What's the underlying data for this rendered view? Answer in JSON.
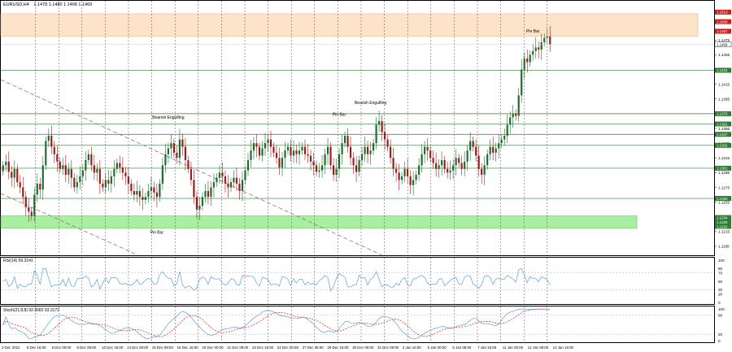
{
  "header": {
    "symbol": "EURUSD,H4",
    "ohlc": "1.1478 1.1480 1.1468 1.1469"
  },
  "colors": {
    "bull": "#1e6b2e",
    "bear": "#9b1c1c",
    "level_line": "#2e7d32",
    "level_label_bg": "#2e7d32",
    "resistance_label_bg": "#cc1f1f",
    "resistance_zone": "#fde3c8",
    "support_zone": "#a8f0a0",
    "grid": "#4a4a4a",
    "trendline": "#8a7a70",
    "rsi_line": "#5aa0d8",
    "stoch_main": "#5aa0d8",
    "stoch_signal": "#cc2222"
  },
  "chart_data": [
    {
      "type": "candlestick",
      "title": "EURUSD,H4",
      "ylim": [
        1.1185,
        1.1525
      ],
      "y_ticks": [
        "1.1475",
        "1.1455",
        "1.1435",
        "1.1415",
        "1.1395",
        "1.1375",
        "1.1355",
        "1.1335",
        "1.1315",
        "1.1295",
        "1.1275",
        "1.1255",
        "1.1235",
        "1.1215",
        "1.1195"
      ],
      "resistance_labels": [
        "1.1513",
        "1.1500",
        "1.1487"
      ],
      "current_price": "1.1469",
      "levels": [
        {
          "price": 1.1434,
          "label": "1.1434"
        },
        {
          "price": 1.1375,
          "label": "1.1375"
        },
        {
          "price": 1.1361,
          "label": "1.1361"
        },
        {
          "price": 1.1347,
          "label": "1.1347"
        },
        {
          "price": 1.1332,
          "label": "1.1332"
        },
        {
          "price": 1.1301,
          "label": "1.1301"
        },
        {
          "price": 1.126,
          "label": "1.1260"
        }
      ],
      "support_labels": [
        "1.1234",
        "1.1228",
        "1.1222"
      ],
      "annotations": [
        {
          "text": "Bearish Engulfing",
          "index": 58,
          "price": 1.1368
        },
        {
          "text": "Pin Bar",
          "index": 118,
          "price": 1.1372
        },
        {
          "text": "Bearish Engulfing",
          "index": 129,
          "price": 1.1388
        },
        {
          "text": "Pin Bar",
          "index": 186,
          "price": 1.1485
        },
        {
          "text": "Pin Bar",
          "index": 54,
          "price": 1.1212
        }
      ],
      "x_labels": [
        "3 Dec 2021",
        "6 Dec 16:00",
        "8 Dec 00:00",
        "9 Dec 08:00",
        "10 Dec 16:00",
        "14 Dec 00:00",
        "15 Dec 08:00",
        "16 Dec 16:00",
        "20 Dec 00:00",
        "21 Dec 08:00",
        "22 Dec 16:00",
        "24 Dec 00:00",
        "27 Dec 08:00",
        "28 Dec 16:00",
        "30 Dec 00:00",
        "31 Dec 08:00",
        "3 Jan 16:00",
        "5 Jan 00:00",
        "6 Jan 08:00",
        "7 Jan 16:00",
        "11 Jan 00:00",
        "12 Jan 08:00",
        "13 Jan 16:00"
      ],
      "close": [
        1.1305,
        1.131,
        1.1296,
        1.1288,
        1.13,
        1.1282,
        1.1275,
        1.1262,
        1.1248,
        1.1242,
        1.1236,
        1.1265,
        1.128,
        1.1272,
        1.1305,
        1.1338,
        1.1345,
        1.133,
        1.132,
        1.131,
        1.13,
        1.1305,
        1.1292,
        1.13,
        1.1288,
        1.1275,
        1.1282,
        1.129,
        1.1298,
        1.1312,
        1.132,
        1.1305,
        1.1295,
        1.13,
        1.128,
        1.1275,
        1.1285,
        1.128,
        1.129,
        1.13,
        1.1308,
        1.1302,
        1.1295,
        1.129,
        1.128,
        1.127,
        1.1265,
        1.127,
        1.1262,
        1.1258,
        1.1262,
        1.127,
        1.1275,
        1.1268,
        1.1262,
        1.128,
        1.1305,
        1.132,
        1.1328,
        1.1335,
        1.1322,
        1.1315,
        1.134,
        1.133,
        1.1312,
        1.13,
        1.1285,
        1.1262,
        1.1245,
        1.125,
        1.1262,
        1.127,
        1.1262,
        1.1275,
        1.1282,
        1.1288,
        1.1295,
        1.129,
        1.128,
        1.1275,
        1.1282,
        1.1288,
        1.128,
        1.127,
        1.1285,
        1.1298,
        1.1312,
        1.1325,
        1.1335,
        1.133,
        1.1318,
        1.1328,
        1.1335,
        1.134,
        1.133,
        1.1322,
        1.1315,
        1.1302,
        1.1315,
        1.1325,
        1.133,
        1.1318,
        1.1325,
        1.132,
        1.1325,
        1.133,
        1.132,
        1.1318,
        1.131,
        1.1305,
        1.1296,
        1.1298,
        1.1305,
        1.132,
        1.133,
        1.1305,
        1.1292,
        1.13,
        1.132,
        1.1335,
        1.1345,
        1.133,
        1.1315,
        1.1305,
        1.1296,
        1.1312,
        1.132,
        1.133,
        1.132,
        1.1325,
        1.1335,
        1.136,
        1.1365,
        1.135,
        1.134,
        1.133,
        1.1315,
        1.13,
        1.1295,
        1.1285,
        1.129,
        1.13,
        1.129,
        1.1278,
        1.1285,
        1.1292,
        1.1305,
        1.132,
        1.133,
        1.1325,
        1.1315,
        1.1308,
        1.13,
        1.1305,
        1.1312,
        1.13,
        1.1295,
        1.1298,
        1.1305,
        1.1315,
        1.1308,
        1.13,
        1.131,
        1.1325,
        1.1338,
        1.133,
        1.1318,
        1.13,
        1.1292,
        1.1305,
        1.132,
        1.133,
        1.1322,
        1.1328,
        1.1335,
        1.134,
        1.1345,
        1.136,
        1.137,
        1.1375,
        1.1372,
        1.14,
        1.1435,
        1.145,
        1.1445,
        1.1455,
        1.146,
        1.1465,
        1.1462,
        1.1472,
        1.1478,
        1.148,
        1.1469
      ],
      "series": [],
      "xlabel": "",
      "ylabel": ""
    },
    {
      "type": "line",
      "title": "RSI(14) 69.3141",
      "ylim": [
        0,
        100
      ],
      "y_ticks": [
        "100",
        "80",
        "70",
        "50",
        "30",
        "20",
        "0"
      ]
    },
    {
      "type": "line",
      "title": "Stoch(21,8,8) 92.9682 93.3172",
      "ylim": [
        0,
        100
      ],
      "y_ticks": [
        "100",
        "80",
        "20",
        "0"
      ]
    }
  ]
}
